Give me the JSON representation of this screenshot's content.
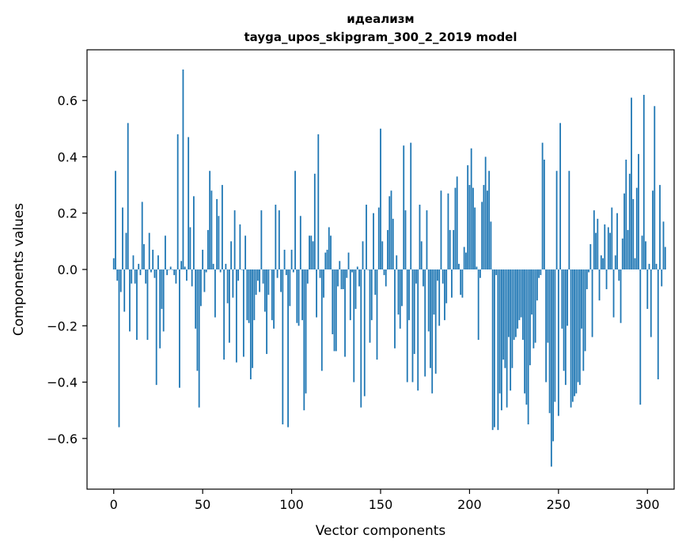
{
  "chart_data": {
    "type": "bar",
    "title_line1": "идеализм",
    "title_line2": "tayga_upos_skipgram_300_2_2019 model",
    "xlabel": "Vector components",
    "ylabel": "Components values",
    "xlim": [
      -15,
      315
    ],
    "ylim": [
      -0.78,
      0.78
    ],
    "xticks": [
      {
        "value": 0,
        "label": "0"
      },
      {
        "value": 50,
        "label": "50"
      },
      {
        "value": 100,
        "label": "100"
      },
      {
        "value": 150,
        "label": "150"
      },
      {
        "value": 200,
        "label": "200"
      },
      {
        "value": 250,
        "label": "250"
      },
      {
        "value": 300,
        "label": "300"
      }
    ],
    "yticks": [
      {
        "value": -0.6,
        "label": "−0.6"
      },
      {
        "value": -0.4,
        "label": "−0.4"
      },
      {
        "value": -0.2,
        "label": "−0.2"
      },
      {
        "value": 0.0,
        "label": "0.0"
      },
      {
        "value": 0.2,
        "label": "0.2"
      },
      {
        "value": 0.4,
        "label": "0.4"
      },
      {
        "value": 0.6,
        "label": "0.6"
      }
    ],
    "bar_color": "#1f77b4",
    "values": [
      0.04,
      0.35,
      -0.04,
      -0.56,
      -0.08,
      0.22,
      -0.15,
      0.13,
      0.52,
      -0.22,
      -0.05,
      0.05,
      -0.05,
      -0.25,
      0.02,
      -0.02,
      0.24,
      0.09,
      -0.05,
      -0.25,
      0.13,
      -0.01,
      0.07,
      -0.03,
      -0.41,
      0.05,
      -0.28,
      -0.14,
      -0.22,
      0.12,
      -0.02,
      0.0,
      0.01,
      0.0,
      -0.02,
      -0.05,
      0.48,
      -0.42,
      0.03,
      0.71,
      0.01,
      -0.04,
      0.47,
      0.15,
      -0.06,
      0.26,
      -0.21,
      -0.36,
      -0.49,
      -0.13,
      0.07,
      -0.08,
      -0.01,
      0.14,
      0.35,
      0.28,
      0.02,
      -0.17,
      0.25,
      0.19,
      -0.01,
      0.3,
      -0.32,
      0.02,
      -0.12,
      -0.26,
      0.1,
      -0.1,
      0.21,
      -0.33,
      -0.04,
      0.16,
      0.0,
      -0.31,
      0.12,
      -0.18,
      -0.19,
      -0.39,
      -0.35,
      -0.18,
      -0.09,
      -0.04,
      -0.08,
      0.21,
      -0.05,
      -0.15,
      -0.3,
      -0.09,
      0.0,
      -0.18,
      -0.21,
      0.23,
      -0.03,
      0.21,
      -0.08,
      -0.55,
      0.07,
      -0.02,
      -0.56,
      -0.13,
      0.07,
      -0.01,
      0.35,
      -0.19,
      -0.2,
      0.19,
      -0.18,
      -0.5,
      -0.44,
      -0.05,
      0.12,
      0.12,
      0.1,
      0.34,
      -0.17,
      0.48,
      -0.03,
      -0.36,
      -0.1,
      0.06,
      0.07,
      0.15,
      0.12,
      -0.23,
      -0.29,
      -0.29,
      -0.06,
      0.03,
      -0.07,
      -0.07,
      -0.31,
      -0.03,
      0.06,
      -0.18,
      -0.01,
      -0.4,
      -0.14,
      0.01,
      -0.06,
      -0.49,
      0.1,
      -0.45,
      0.23,
      0.0,
      -0.26,
      -0.18,
      0.2,
      -0.09,
      -0.32,
      0.22,
      0.5,
      0.1,
      -0.02,
      -0.06,
      0.14,
      0.26,
      0.28,
      0.18,
      -0.28,
      0.05,
      -0.16,
      -0.21,
      -0.13,
      0.44,
      0.21,
      -0.4,
      -0.18,
      0.45,
      -0.4,
      -0.3,
      -0.05,
      -0.43,
      0.23,
      0.1,
      -0.06,
      -0.38,
      0.21,
      -0.22,
      -0.35,
      -0.44,
      -0.16,
      -0.37,
      -0.04,
      -0.2,
      0.28,
      -0.05,
      -0.18,
      -0.12,
      0.27,
      0.14,
      -0.1,
      0.14,
      0.29,
      0.33,
      0.02,
      -0.09,
      -0.1,
      0.08,
      0.06,
      0.37,
      0.3,
      0.43,
      0.29,
      0.22,
      0.01,
      -0.25,
      -0.03,
      0.24,
      0.3,
      0.4,
      0.28,
      0.35,
      0.17,
      -0.57,
      -0.56,
      -0.02,
      -0.57,
      -0.44,
      -0.5,
      -0.32,
      -0.35,
      -0.49,
      -0.24,
      -0.43,
      -0.35,
      -0.25,
      -0.24,
      -0.21,
      -0.18,
      -0.17,
      -0.25,
      -0.44,
      -0.48,
      -0.55,
      -0.34,
      -0.16,
      -0.28,
      -0.26,
      -0.11,
      -0.03,
      -0.02,
      0.45,
      0.39,
      -0.4,
      -0.26,
      -0.51,
      -0.7,
      -0.61,
      -0.47,
      0.35,
      -0.52,
      0.52,
      -0.21,
      -0.36,
      -0.41,
      -0.2,
      0.35,
      -0.49,
      -0.47,
      -0.45,
      -0.44,
      -0.4,
      -0.41,
      -0.21,
      -0.36,
      -0.29,
      -0.07,
      -0.01,
      0.09,
      -0.24,
      0.21,
      0.13,
      0.18,
      -0.11,
      0.05,
      0.04,
      0.16,
      -0.07,
      0.15,
      0.13,
      0.22,
      -0.17,
      0.05,
      0.2,
      -0.04,
      -0.19,
      0.11,
      0.27,
      0.39,
      0.14,
      0.34,
      0.61,
      0.25,
      0.04,
      0.29,
      0.41,
      -0.48,
      0.12,
      0.62,
      0.1,
      -0.14,
      0.02,
      -0.24,
      0.28,
      0.58,
      0.02,
      -0.39,
      0.3,
      -0.06,
      0.17,
      0.08
    ]
  }
}
